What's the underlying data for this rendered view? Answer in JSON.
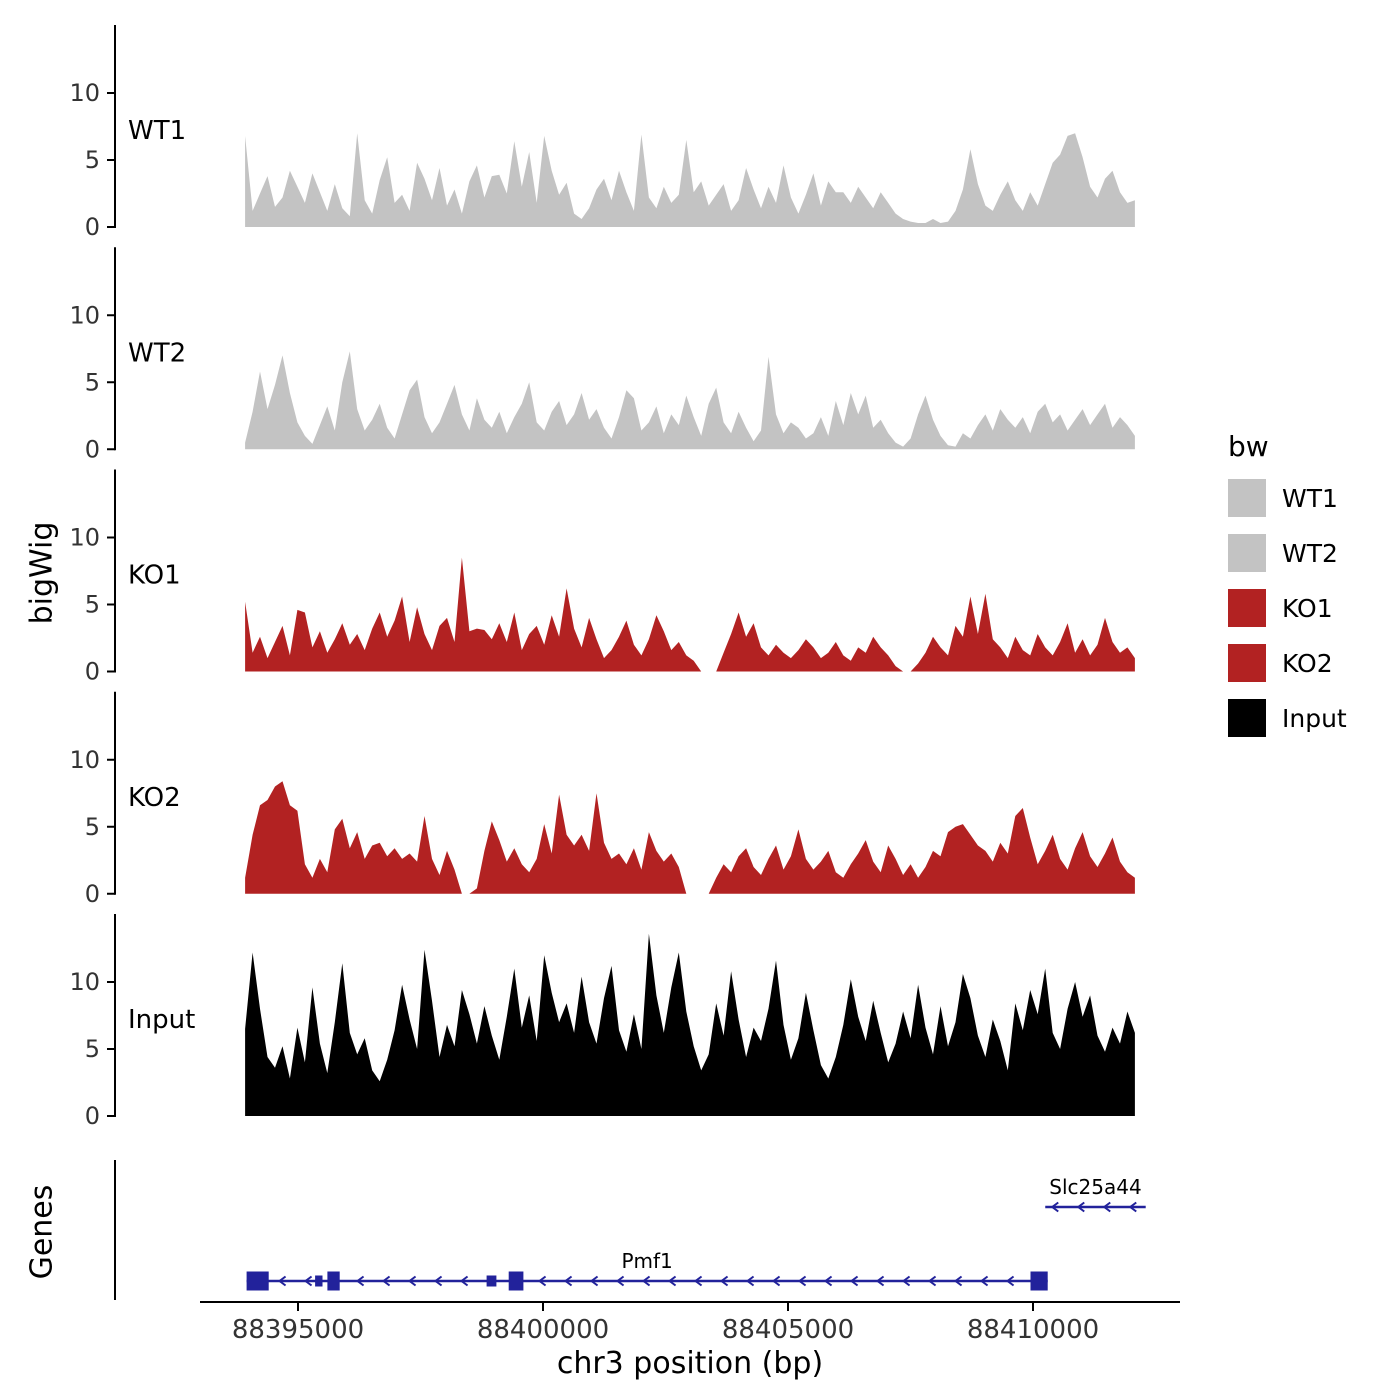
{
  "chart_data": {
    "type": "area",
    "xlabel": "chr3 position (bp)",
    "ylabel": "bigWig",
    "genes_panel_label": "Genes",
    "x_range": [
      88393000,
      88413000
    ],
    "x_ticks": [
      88395000,
      88400000,
      88405000,
      88410000
    ],
    "x_tick_labels": [
      "88395000",
      "88400000",
      "88405000",
      "88410000"
    ],
    "signal_range": [
      88393920,
      88412080
    ],
    "y_ticks": [
      0,
      5,
      10
    ],
    "ylim": [
      0,
      13.8
    ],
    "grid": false,
    "legend_position": "right",
    "legend": {
      "title": "bw",
      "items": [
        {
          "label": "WT1",
          "color": "#c3c3c3"
        },
        {
          "label": "WT2",
          "color": "#c3c3c3"
        },
        {
          "label": "KO1",
          "color": "#b22222"
        },
        {
          "label": "KO2",
          "color": "#b22222"
        },
        {
          "label": "Input",
          "color": "#000000"
        }
      ]
    },
    "tracks": [
      {
        "name": "WT1",
        "label": "WT1",
        "color": "#c3c3c3",
        "values": [
          6.8,
          1.2,
          2.5,
          3.8,
          1.5,
          2.2,
          4.2,
          3.0,
          1.8,
          4.0,
          2.6,
          1.2,
          3.2,
          1.4,
          0.8,
          7.0,
          2.0,
          1.0,
          3.5,
          5.2,
          1.8,
          2.4,
          1.2,
          4.8,
          3.6,
          2.0,
          4.4,
          1.6,
          2.8,
          1.0,
          3.4,
          4.6,
          2.2,
          3.8,
          3.9,
          2.5,
          6.4,
          3.0,
          5.6,
          1.8,
          6.8,
          4.2,
          2.4,
          3.3,
          1.0,
          0.6,
          1.4,
          2.8,
          3.6,
          2.0,
          4.2,
          2.6,
          1.2,
          6.9,
          2.2,
          1.4,
          3.0,
          1.8,
          2.4,
          6.5,
          2.6,
          3.4,
          1.6,
          2.4,
          3.2,
          1.2,
          2.0,
          4.4,
          2.8,
          1.4,
          3.0,
          1.8,
          4.6,
          2.2,
          1.0,
          2.4,
          4.0,
          1.6,
          3.4,
          2.6,
          2.6,
          1.8,
          3.0,
          2.2,
          1.4,
          2.6,
          1.8,
          1.0,
          0.6,
          0.4,
          0.3,
          0.3,
          0.6,
          0.3,
          0.4,
          1.2,
          2.8,
          5.8,
          3.2,
          1.6,
          1.2,
          2.4,
          3.4,
          2.0,
          1.2,
          2.6,
          1.6,
          3.2,
          4.8,
          5.4,
          6.8,
          7.0,
          5.2,
          3.0,
          2.2,
          3.6,
          4.2,
          2.6,
          1.8,
          2.0
        ]
      },
      {
        "name": "WT2",
        "label": "WT2",
        "color": "#c3c3c3",
        "values": [
          0.5,
          2.8,
          5.8,
          3.0,
          4.8,
          7.0,
          4.2,
          2.0,
          1.0,
          0.4,
          1.8,
          3.2,
          1.4,
          5.0,
          7.3,
          3.0,
          1.4,
          2.2,
          3.4,
          1.6,
          0.8,
          2.6,
          4.4,
          5.2,
          2.4,
          1.2,
          2.0,
          3.4,
          4.8,
          2.6,
          1.4,
          3.8,
          2.2,
          1.6,
          2.8,
          1.2,
          2.4,
          3.4,
          5.0,
          2.0,
          1.4,
          2.8,
          3.6,
          1.8,
          2.6,
          4.2,
          2.2,
          3.0,
          1.6,
          0.8,
          2.4,
          4.4,
          3.8,
          1.4,
          2.0,
          3.2,
          1.2,
          2.6,
          1.8,
          4.0,
          2.4,
          1.0,
          3.4,
          4.6,
          2.0,
          1.2,
          2.8,
          1.6,
          0.6,
          1.4,
          6.9,
          2.6,
          1.2,
          2.0,
          1.6,
          0.8,
          1.2,
          2.4,
          1.0,
          3.6,
          1.8,
          4.2,
          2.6,
          4.0,
          1.6,
          2.2,
          1.2,
          0.5,
          0.2,
          0.8,
          2.6,
          4.0,
          2.2,
          1.0,
          0.3,
          0.2,
          1.2,
          0.8,
          1.8,
          2.6,
          1.4,
          3.0,
          2.2,
          1.6,
          2.4,
          1.2,
          2.8,
          3.4,
          2.0,
          2.6,
          1.4,
          2.2,
          3.0,
          1.8,
          2.6,
          3.4,
          1.6,
          2.4,
          1.8,
          1.0
        ]
      },
      {
        "name": "KO1",
        "label": "KO1",
        "color": "#b22222",
        "values": [
          5.2,
          1.4,
          2.6,
          1.0,
          2.2,
          3.4,
          1.2,
          4.6,
          4.4,
          1.8,
          3.0,
          1.4,
          2.4,
          3.6,
          2.0,
          2.8,
          1.6,
          3.2,
          4.4,
          2.6,
          3.8,
          5.6,
          2.2,
          4.8,
          2.8,
          1.6,
          3.4,
          4.0,
          2.2,
          8.5,
          3.0,
          3.2,
          3.1,
          2.4,
          3.6,
          2.2,
          4.4,
          1.6,
          2.8,
          3.4,
          2.0,
          4.2,
          2.6,
          6.2,
          3.2,
          1.8,
          4.0,
          2.4,
          1.0,
          1.6,
          2.6,
          3.8,
          2.0,
          1.2,
          2.4,
          4.2,
          3.0,
          1.6,
          2.2,
          1.2,
          0.8,
          0.0,
          0.0,
          0.0,
          1.4,
          2.8,
          4.4,
          2.6,
          3.6,
          1.8,
          1.2,
          2.0,
          1.4,
          1.0,
          1.6,
          2.4,
          1.8,
          1.0,
          1.4,
          2.2,
          1.2,
          0.8,
          1.8,
          1.4,
          2.6,
          1.8,
          1.2,
          0.4,
          0.0,
          0.0,
          0.6,
          1.4,
          2.6,
          1.8,
          1.2,
          3.4,
          2.6,
          5.6,
          2.8,
          5.8,
          2.4,
          1.8,
          1.0,
          2.6,
          1.6,
          1.2,
          2.8,
          1.8,
          1.2,
          2.2,
          3.6,
          1.4,
          2.4,
          1.2,
          2.0,
          4.0,
          2.2,
          1.4,
          1.8,
          1.0
        ]
      },
      {
        "name": "KO2",
        "label": "KO2",
        "color": "#b22222",
        "values": [
          1.2,
          4.4,
          6.6,
          7.0,
          8.0,
          8.4,
          6.6,
          6.2,
          2.2,
          1.2,
          2.6,
          1.6,
          4.8,
          5.6,
          3.4,
          4.6,
          2.6,
          3.6,
          3.8,
          2.8,
          3.4,
          2.6,
          3.0,
          2.4,
          5.8,
          2.6,
          1.4,
          3.2,
          1.8,
          0.0,
          0.0,
          0.4,
          3.2,
          5.4,
          4.0,
          2.4,
          3.4,
          2.2,
          1.6,
          2.6,
          5.2,
          3.0,
          7.4,
          4.4,
          3.6,
          4.4,
          3.2,
          7.5,
          3.8,
          2.6,
          3.0,
          2.2,
          3.4,
          1.8,
          4.6,
          3.2,
          2.4,
          3.0,
          2.0,
          0.0,
          0.0,
          0.0,
          0.0,
          1.2,
          2.2,
          1.6,
          2.8,
          3.4,
          2.0,
          1.4,
          2.6,
          3.6,
          1.8,
          2.8,
          4.8,
          2.6,
          1.8,
          2.4,
          3.2,
          1.6,
          1.2,
          2.2,
          3.0,
          4.0,
          2.4,
          1.6,
          3.6,
          2.6,
          1.4,
          2.2,
          1.2,
          2.0,
          3.2,
          2.8,
          4.6,
          5.0,
          5.2,
          4.4,
          3.6,
          3.2,
          2.4,
          3.8,
          3.0,
          5.8,
          6.4,
          4.2,
          2.2,
          3.2,
          4.4,
          2.6,
          1.8,
          3.4,
          4.6,
          2.8,
          2.0,
          3.0,
          4.2,
          2.4,
          1.6,
          1.2
        ]
      },
      {
        "name": "Input",
        "label": "Input",
        "color": "#000000",
        "values": [
          6.5,
          12.2,
          8.0,
          4.4,
          3.6,
          5.2,
          2.8,
          6.6,
          4.0,
          9.6,
          5.4,
          3.2,
          7.0,
          11.4,
          6.2,
          4.6,
          5.8,
          3.4,
          2.6,
          4.2,
          6.4,
          9.8,
          7.2,
          5.0,
          12.4,
          8.6,
          4.4,
          6.8,
          5.2,
          9.4,
          7.6,
          5.4,
          8.2,
          6.0,
          4.2,
          7.4,
          11.0,
          6.6,
          9.0,
          5.6,
          12.0,
          9.2,
          7.0,
          8.4,
          6.2,
          10.4,
          7.0,
          5.4,
          8.8,
          11.2,
          6.4,
          4.8,
          7.6,
          5.0,
          13.6,
          9.0,
          6.2,
          9.6,
          12.2,
          7.8,
          5.2,
          3.4,
          4.6,
          8.4,
          6.0,
          10.8,
          7.2,
          4.4,
          6.6,
          5.6,
          8.0,
          11.6,
          6.8,
          4.2,
          5.8,
          9.2,
          6.4,
          3.8,
          2.8,
          4.4,
          6.8,
          10.2,
          7.4,
          5.6,
          8.6,
          6.2,
          4.0,
          5.4,
          7.8,
          5.8,
          9.8,
          6.6,
          4.6,
          8.2,
          5.2,
          7.0,
          10.6,
          8.8,
          6.0,
          4.4,
          7.2,
          5.6,
          3.4,
          8.4,
          6.4,
          9.4,
          7.6,
          11.0,
          6.2,
          5.0,
          8.0,
          10.0,
          7.4,
          9.0,
          6.0,
          4.8,
          6.6,
          5.4,
          7.8,
          6.2
        ]
      }
    ],
    "gene_color": "#22229b",
    "genes": [
      {
        "name": "Slc25a44",
        "start": 88410250,
        "end": 88412300,
        "strand": "-",
        "exons": []
      },
      {
        "name": "Pmf1",
        "start": 88393950,
        "end": 88410300,
        "strand": "-",
        "exons": [
          {
            "start": 88393950,
            "end": 88394400,
            "tall": true
          },
          {
            "start": 88395350,
            "end": 88395500,
            "tall": false
          },
          {
            "start": 88395600,
            "end": 88395850,
            "tall": true
          },
          {
            "start": 88398850,
            "end": 88399050,
            "tall": false
          },
          {
            "start": 88399300,
            "end": 88399600,
            "tall": true
          },
          {
            "start": 88409950,
            "end": 88410300,
            "tall": true
          }
        ]
      }
    ]
  }
}
